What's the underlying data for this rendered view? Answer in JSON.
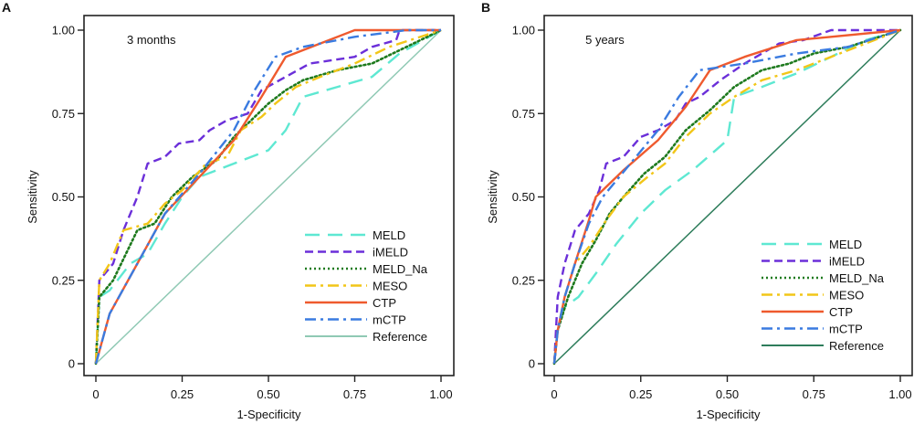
{
  "chart_data": [
    {
      "type": "line",
      "panel_label": "A",
      "annotation": "3 months",
      "xlabel": "1-Specificity",
      "ylabel": "Sensitivity",
      "xlim": [
        0,
        1
      ],
      "ylim": [
        0,
        1
      ],
      "xticks": [
        "0",
        "0.25",
        "0.50",
        "0.75",
        "1.00"
      ],
      "yticks": [
        "0",
        "0.25",
        "0.50",
        "0.75",
        "1.00"
      ],
      "grid": false,
      "legend_position": "bottom-right",
      "series": [
        {
          "name": "MELD",
          "color": "#5ee8d2",
          "dash": "long-dash",
          "points": [
            [
              0,
              0
            ],
            [
              0.01,
              0.2
            ],
            [
              0.04,
              0.22
            ],
            [
              0.1,
              0.3
            ],
            [
              0.15,
              0.33
            ],
            [
              0.2,
              0.42
            ],
            [
              0.25,
              0.5
            ],
            [
              0.3,
              0.56
            ],
            [
              0.4,
              0.6
            ],
            [
              0.5,
              0.64
            ],
            [
              0.55,
              0.7
            ],
            [
              0.6,
              0.8
            ],
            [
              0.7,
              0.83
            ],
            [
              0.8,
              0.86
            ],
            [
              0.88,
              0.93
            ],
            [
              1,
              1
            ]
          ]
        },
        {
          "name": "iMELD",
          "color": "#6b2fd9",
          "dash": "dash",
          "points": [
            [
              0,
              0
            ],
            [
              0.01,
              0.25
            ],
            [
              0.05,
              0.3
            ],
            [
              0.08,
              0.4
            ],
            [
              0.12,
              0.5
            ],
            [
              0.15,
              0.6
            ],
            [
              0.2,
              0.62
            ],
            [
              0.24,
              0.66
            ],
            [
              0.3,
              0.67
            ],
            [
              0.33,
              0.7
            ],
            [
              0.38,
              0.73
            ],
            [
              0.44,
              0.75
            ],
            [
              0.48,
              0.82
            ],
            [
              0.55,
              0.86
            ],
            [
              0.62,
              0.9
            ],
            [
              0.75,
              0.92
            ],
            [
              0.8,
              0.95
            ],
            [
              0.87,
              0.97
            ],
            [
              0.88,
              1
            ],
            [
              1,
              1
            ]
          ]
        },
        {
          "name": "MELD_Na",
          "color": "#1e7a1e",
          "dash": "dot",
          "points": [
            [
              0,
              0
            ],
            [
              0.01,
              0.2
            ],
            [
              0.05,
              0.25
            ],
            [
              0.12,
              0.4
            ],
            [
              0.17,
              0.42
            ],
            [
              0.22,
              0.5
            ],
            [
              0.28,
              0.56
            ],
            [
              0.35,
              0.61
            ],
            [
              0.4,
              0.68
            ],
            [
              0.45,
              0.73
            ],
            [
              0.5,
              0.78
            ],
            [
              0.55,
              0.82
            ],
            [
              0.6,
              0.85
            ],
            [
              0.7,
              0.88
            ],
            [
              0.8,
              0.9
            ],
            [
              0.9,
              0.95
            ],
            [
              1,
              1
            ]
          ]
        },
        {
          "name": "MESO",
          "color": "#f2c618",
          "dash": "dash-dot",
          "points": [
            [
              0,
              0
            ],
            [
              0.01,
              0.25
            ],
            [
              0.04,
              0.3
            ],
            [
              0.08,
              0.4
            ],
            [
              0.15,
              0.42
            ],
            [
              0.2,
              0.48
            ],
            [
              0.25,
              0.52
            ],
            [
              0.32,
              0.6
            ],
            [
              0.38,
              0.62
            ],
            [
              0.42,
              0.7
            ],
            [
              0.48,
              0.74
            ],
            [
              0.52,
              0.78
            ],
            [
              0.58,
              0.83
            ],
            [
              0.65,
              0.86
            ],
            [
              0.75,
              0.9
            ],
            [
              0.85,
              0.95
            ],
            [
              1,
              1
            ]
          ]
        },
        {
          "name": "CTP",
          "color": "#ef5a2e",
          "dash": "solid",
          "points": [
            [
              0,
              0
            ],
            [
              0.04,
              0.15
            ],
            [
              0.12,
              0.3
            ],
            [
              0.2,
              0.45
            ],
            [
              0.3,
              0.56
            ],
            [
              0.4,
              0.67
            ],
            [
              0.48,
              0.8
            ],
            [
              0.55,
              0.92
            ],
            [
              0.65,
              0.96
            ],
            [
              0.75,
              1
            ],
            [
              1,
              1
            ]
          ]
        },
        {
          "name": "mCTP",
          "color": "#3a7be0",
          "dash": "dash-dot",
          "points": [
            [
              0,
              0
            ],
            [
              0.04,
              0.15
            ],
            [
              0.12,
              0.3
            ],
            [
              0.2,
              0.45
            ],
            [
              0.3,
              0.57
            ],
            [
              0.4,
              0.7
            ],
            [
              0.46,
              0.82
            ],
            [
              0.52,
              0.92
            ],
            [
              0.6,
              0.95
            ],
            [
              0.75,
              0.98
            ],
            [
              0.9,
              1
            ],
            [
              1,
              1
            ]
          ]
        },
        {
          "name": "Reference",
          "color": "#8fc9b4",
          "dash": "solid",
          "points": [
            [
              0,
              0
            ],
            [
              1,
              1
            ]
          ]
        }
      ]
    },
    {
      "type": "line",
      "panel_label": "B",
      "annotation": "5 years",
      "xlabel": "1-Specificity",
      "ylabel": "Sensitivity",
      "xlim": [
        0,
        1
      ],
      "ylim": [
        0,
        1
      ],
      "xticks": [
        "0",
        "0.25",
        "0.50",
        "0.75",
        "1.00"
      ],
      "yticks": [
        "0",
        "0.25",
        "0.50",
        "0.75",
        "1.00"
      ],
      "grid": false,
      "legend_position": "bottom-right",
      "series": [
        {
          "name": "MELD",
          "color": "#5ee8d2",
          "dash": "long-dash",
          "points": [
            [
              0,
              0
            ],
            [
              0.01,
              0.1
            ],
            [
              0.03,
              0.17
            ],
            [
              0.07,
              0.2
            ],
            [
              0.12,
              0.27
            ],
            [
              0.18,
              0.36
            ],
            [
              0.25,
              0.45
            ],
            [
              0.32,
              0.52
            ],
            [
              0.4,
              0.58
            ],
            [
              0.5,
              0.67
            ],
            [
              0.52,
              0.8
            ],
            [
              0.6,
              0.83
            ],
            [
              0.7,
              0.87
            ],
            [
              0.8,
              0.92
            ],
            [
              0.9,
              0.97
            ],
            [
              1,
              1
            ]
          ]
        },
        {
          "name": "iMELD",
          "color": "#6b2fd9",
          "dash": "dash",
          "points": [
            [
              0,
              0
            ],
            [
              0.01,
              0.2
            ],
            [
              0.03,
              0.3
            ],
            [
              0.06,
              0.4
            ],
            [
              0.1,
              0.45
            ],
            [
              0.13,
              0.52
            ],
            [
              0.15,
              0.6
            ],
            [
              0.2,
              0.62
            ],
            [
              0.25,
              0.68
            ],
            [
              0.3,
              0.7
            ],
            [
              0.35,
              0.73
            ],
            [
              0.38,
              0.78
            ],
            [
              0.42,
              0.8
            ],
            [
              0.48,
              0.85
            ],
            [
              0.55,
              0.9
            ],
            [
              0.65,
              0.96
            ],
            [
              0.72,
              0.97
            ],
            [
              0.8,
              1
            ],
            [
              1,
              1
            ]
          ]
        },
        {
          "name": "MELD_Na",
          "color": "#1e7a1e",
          "dash": "dot",
          "points": [
            [
              0,
              0
            ],
            [
              0.01,
              0.1
            ],
            [
              0.04,
              0.2
            ],
            [
              0.08,
              0.3
            ],
            [
              0.12,
              0.37
            ],
            [
              0.16,
              0.45
            ],
            [
              0.2,
              0.5
            ],
            [
              0.26,
              0.57
            ],
            [
              0.32,
              0.62
            ],
            [
              0.38,
              0.7
            ],
            [
              0.45,
              0.76
            ],
            [
              0.52,
              0.83
            ],
            [
              0.6,
              0.88
            ],
            [
              0.68,
              0.9
            ],
            [
              0.75,
              0.93
            ],
            [
              0.85,
              0.95
            ],
            [
              1,
              1
            ]
          ]
        },
        {
          "name": "MESO",
          "color": "#f2c618",
          "dash": "dash-dot",
          "points": [
            [
              0,
              0
            ],
            [
              0.01,
              0.1
            ],
            [
              0.03,
              0.2
            ],
            [
              0.06,
              0.3
            ],
            [
              0.1,
              0.35
            ],
            [
              0.15,
              0.43
            ],
            [
              0.2,
              0.5
            ],
            [
              0.27,
              0.56
            ],
            [
              0.32,
              0.6
            ],
            [
              0.38,
              0.68
            ],
            [
              0.45,
              0.75
            ],
            [
              0.52,
              0.8
            ],
            [
              0.6,
              0.85
            ],
            [
              0.7,
              0.88
            ],
            [
              0.8,
              0.92
            ],
            [
              0.9,
              0.96
            ],
            [
              1,
              1
            ]
          ]
        },
        {
          "name": "CTP",
          "color": "#ef5a2e",
          "dash": "solid",
          "points": [
            [
              0,
              0
            ],
            [
              0.01,
              0.1
            ],
            [
              0.03,
              0.2
            ],
            [
              0.06,
              0.3
            ],
            [
              0.1,
              0.43
            ],
            [
              0.12,
              0.5
            ],
            [
              0.2,
              0.58
            ],
            [
              0.3,
              0.67
            ],
            [
              0.38,
              0.77
            ],
            [
              0.45,
              0.88
            ],
            [
              0.55,
              0.92
            ],
            [
              0.7,
              0.97
            ],
            [
              0.8,
              0.98
            ],
            [
              1,
              1
            ]
          ]
        },
        {
          "name": "mCTP",
          "color": "#3a7be0",
          "dash": "dash-dot",
          "points": [
            [
              0,
              0
            ],
            [
              0.01,
              0.1
            ],
            [
              0.03,
              0.2
            ],
            [
              0.06,
              0.3
            ],
            [
              0.1,
              0.42
            ],
            [
              0.14,
              0.5
            ],
            [
              0.22,
              0.6
            ],
            [
              0.3,
              0.7
            ],
            [
              0.36,
              0.8
            ],
            [
              0.42,
              0.88
            ],
            [
              0.55,
              0.9
            ],
            [
              0.7,
              0.93
            ],
            [
              0.85,
              0.95
            ],
            [
              1,
              1
            ]
          ]
        },
        {
          "name": "Reference",
          "color": "#2e7d5b",
          "dash": "solid",
          "points": [
            [
              0,
              0
            ],
            [
              1,
              1
            ]
          ]
        }
      ]
    }
  ]
}
